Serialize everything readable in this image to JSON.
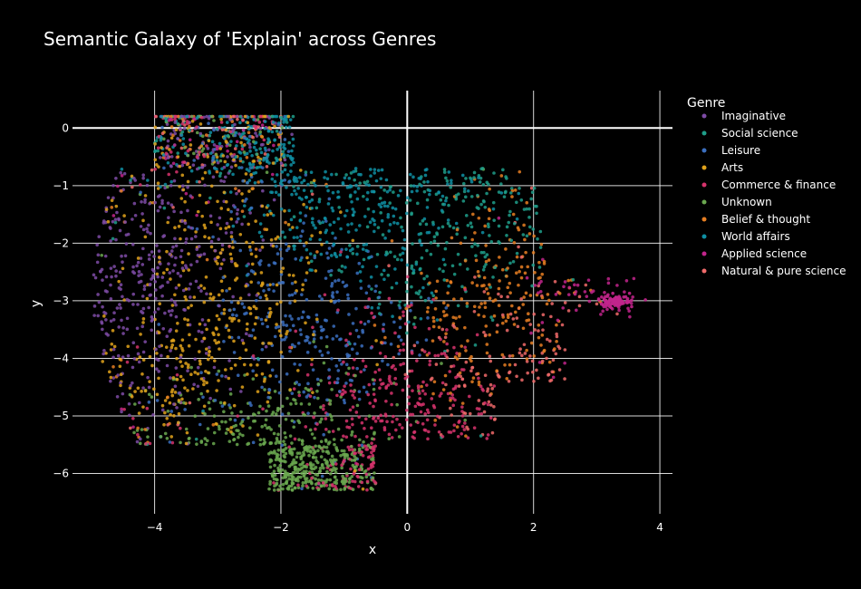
{
  "chart_data": {
    "type": "scatter",
    "title": "Semantic Galaxy of 'Explain' across Genres",
    "xlabel": "x",
    "ylabel": "y",
    "xlim": [
      -5.3,
      4.2
    ],
    "ylim": [
      -6.7,
      0.65
    ],
    "x_ticks": [
      -4,
      -2,
      0,
      2,
      4
    ],
    "y_ticks": [
      0,
      -1,
      -2,
      -3,
      -4,
      -5,
      -6
    ],
    "x_tick_labels": [
      "−4",
      "−2",
      "0",
      "2",
      "4"
    ],
    "y_tick_labels": [
      "0",
      "−1",
      "−2",
      "−3",
      "−4",
      "−5",
      "−6"
    ],
    "grid": true,
    "legend": {
      "title": "Genre",
      "placement": "right"
    },
    "series": [
      {
        "name": "Imaginative",
        "color": "#7e4ba6"
      },
      {
        "name": "Social science",
        "color": "#1f9e89"
      },
      {
        "name": "Leisure",
        "color": "#3b6fbf"
      },
      {
        "name": "Arts",
        "color": "#e0a21b"
      },
      {
        "name": "Commerce & finance",
        "color": "#d6336c"
      },
      {
        "name": "Unknown",
        "color": "#6aa84f"
      },
      {
        "name": "Belief & thought",
        "color": "#e67e22"
      },
      {
        "name": "World affairs",
        "color": "#0f8fa3"
      },
      {
        "name": "Applied science",
        "color": "#c2258c"
      },
      {
        "name": "Natural & pure science",
        "color": "#f06a6a"
      }
    ]
  }
}
